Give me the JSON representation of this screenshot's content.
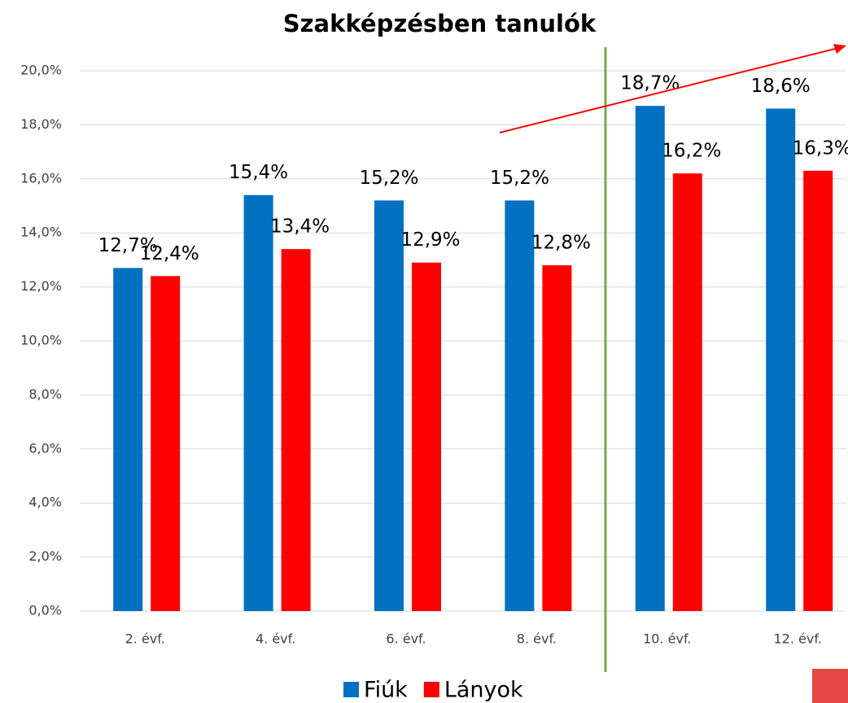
{
  "chart_data": {
    "type": "bar",
    "title": "Szakképzésben tanulók",
    "categories": [
      "2. évf.",
      "4. évf.",
      "6. évf.",
      "8. évf.",
      "10. évf.",
      "12. évf."
    ],
    "series": [
      {
        "name": "Fiúk",
        "color": "#0070c0",
        "values": [
          12.7,
          15.4,
          15.2,
          15.2,
          18.7,
          18.6
        ],
        "value_labels": [
          "12,7%",
          "15,4%",
          "15,2%",
          "15,2%",
          "18,7%",
          "18,6%"
        ]
      },
      {
        "name": "Lányok",
        "color": "#ff0000",
        "values": [
          12.4,
          13.4,
          12.9,
          12.8,
          16.2,
          16.3
        ],
        "value_labels": [
          "12,4%",
          "13,4%",
          "12,9%",
          "12,8%",
          "16,2%",
          "16,3%"
        ]
      }
    ],
    "ylim": [
      0,
      20
    ],
    "yticks": [
      {
        "value": 0,
        "label": "0,0%"
      },
      {
        "value": 2,
        "label": "2,0%"
      },
      {
        "value": 4,
        "label": "4,0%"
      },
      {
        "value": 6,
        "label": "6,0%"
      },
      {
        "value": 8,
        "label": "8,0%"
      },
      {
        "value": 10,
        "label": "10,0%"
      },
      {
        "value": 12,
        "label": "12,0%"
      },
      {
        "value": 14,
        "label": "14,0%"
      },
      {
        "value": 16,
        "label": "16,0%"
      },
      {
        "value": 18,
        "label": "18,0%"
      },
      {
        "value": 20,
        "label": "20,0%"
      }
    ],
    "grid": true,
    "legend": "bottom"
  }
}
